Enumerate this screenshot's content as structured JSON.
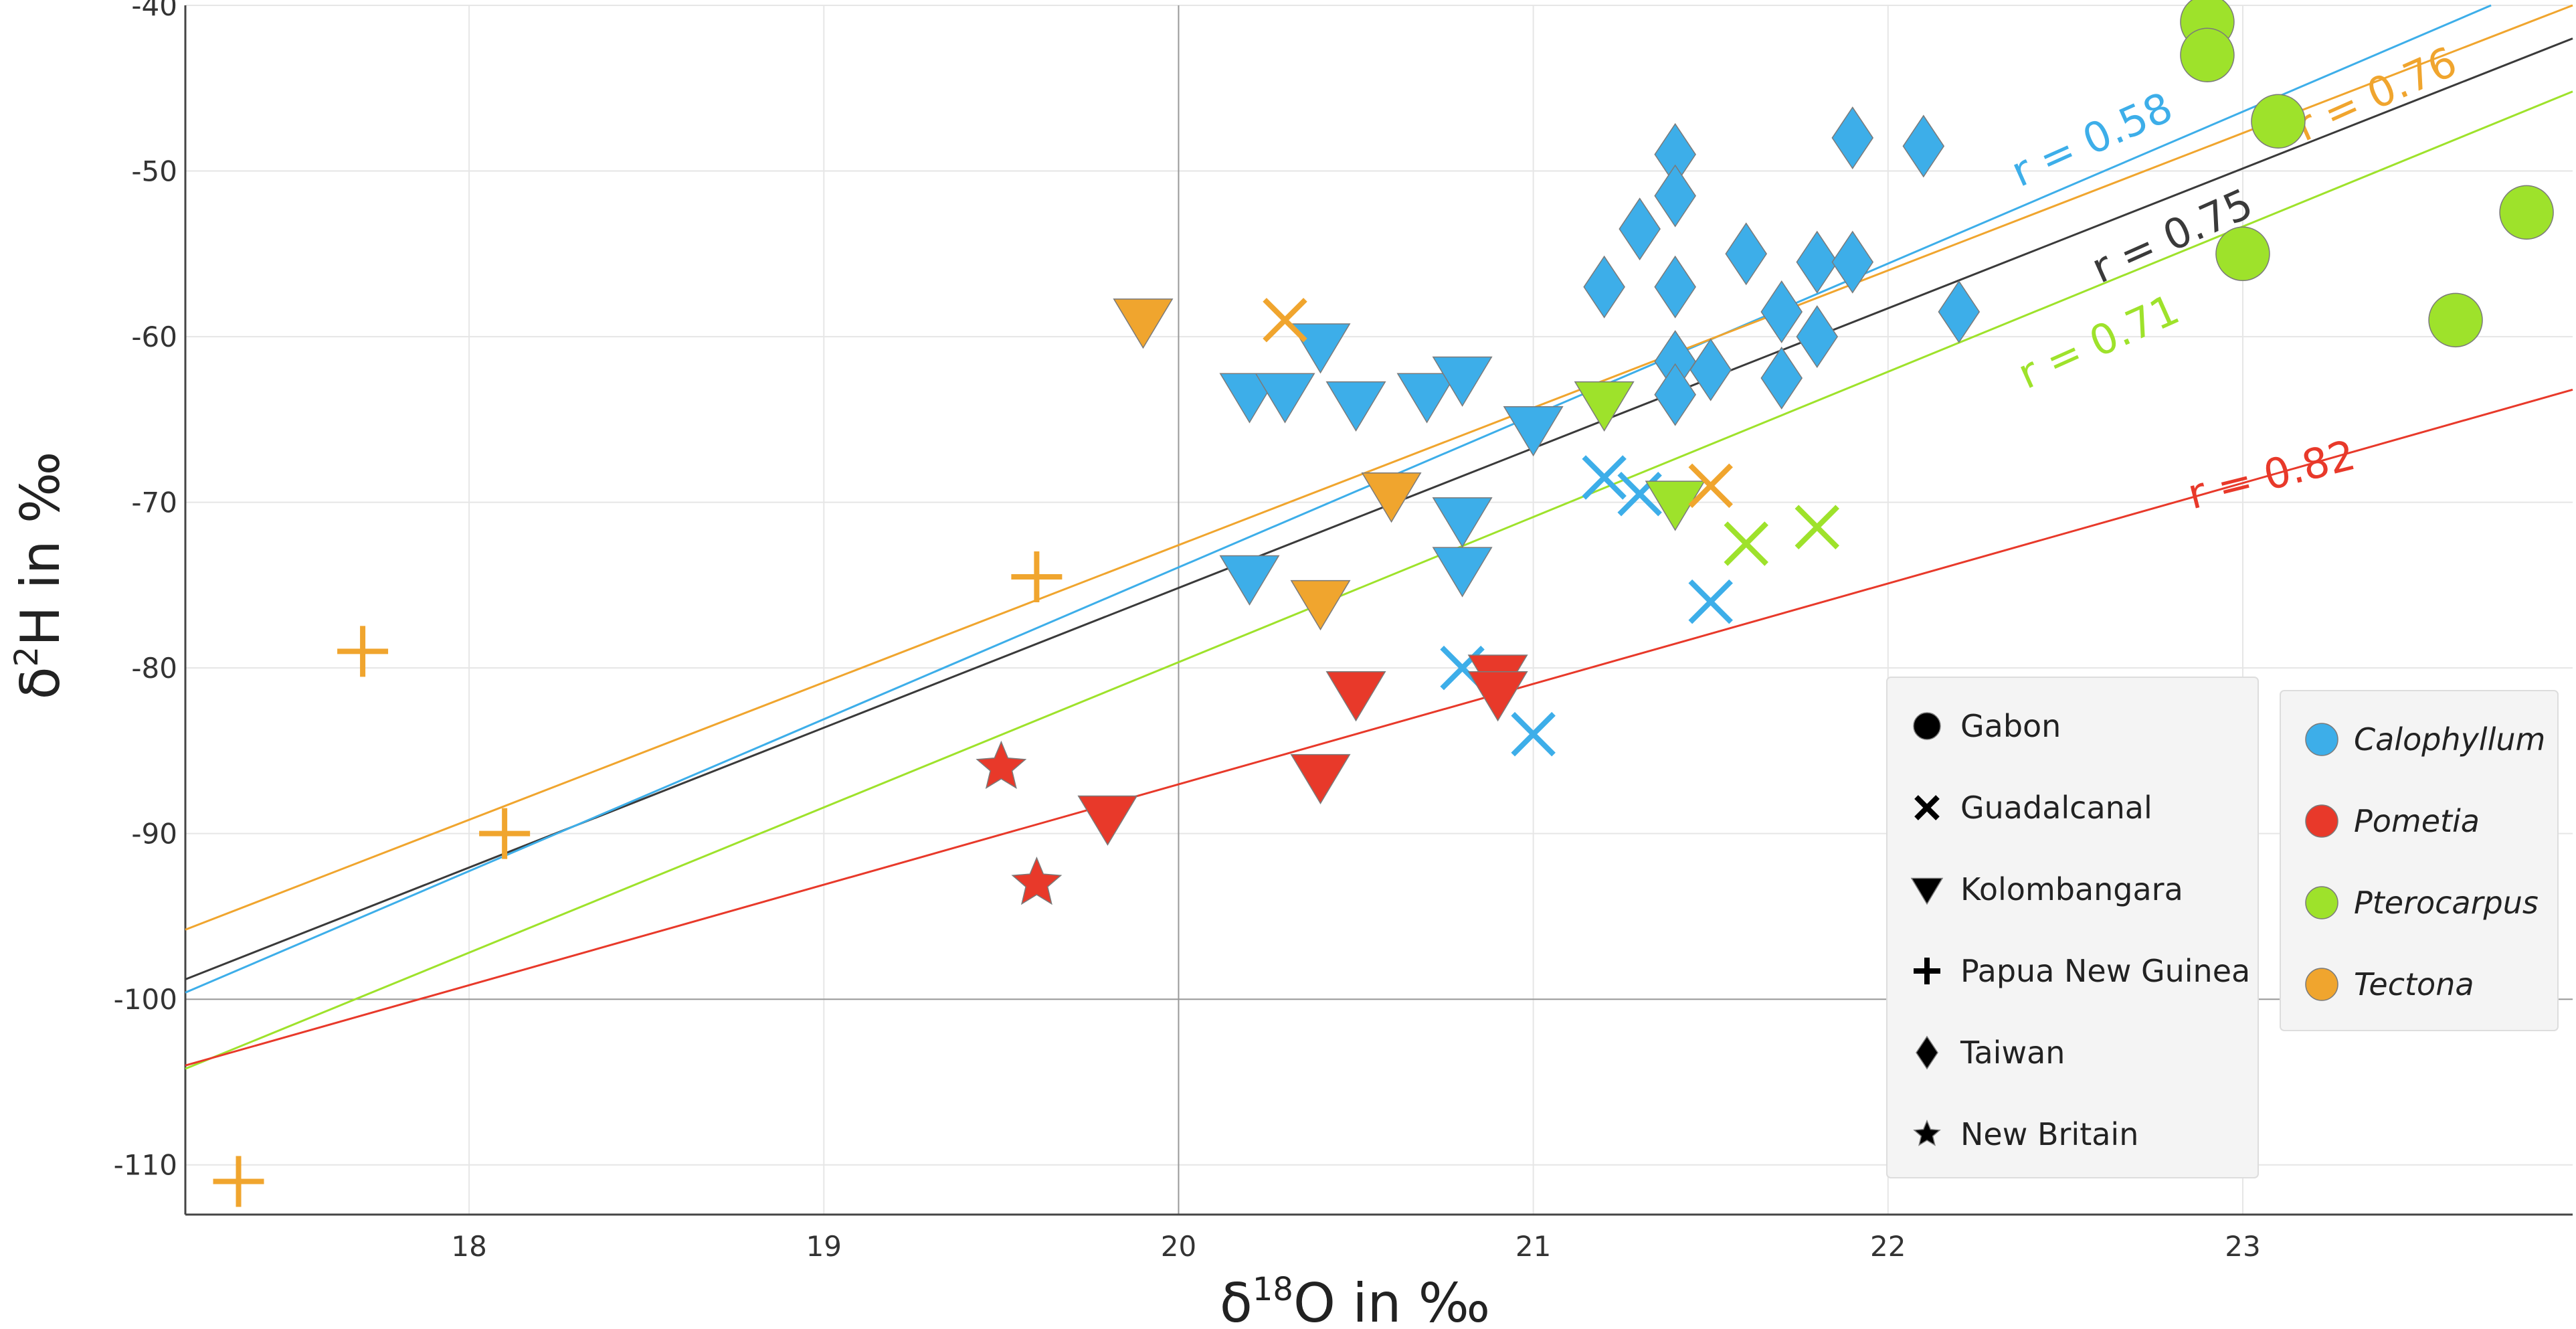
{
  "chart_data": {
    "type": "scatter",
    "xlabel_base": "δ",
    "xlabel_sup": "18",
    "xlabel_rest": "O in ‰",
    "ylabel_base": "δ",
    "ylabel_sup": "2",
    "ylabel_rest": "H in ‰",
    "xlim": [
      17.2,
      23.93
    ],
    "ylim": [
      -113,
      -40
    ],
    "x_ticks": [
      18,
      19,
      20,
      21,
      22,
      23
    ],
    "y_ticks": [
      -40,
      -50,
      -60,
      -70,
      -80,
      -90,
      -100,
      -110
    ],
    "x_tick_labels": [
      "18",
      "19",
      "20",
      "21",
      "22",
      "23"
    ],
    "y_tick_labels": [
      "-40",
      "-50",
      "-60",
      "-70",
      "-80",
      "-90",
      "-100",
      "-110"
    ],
    "zero_reference": {
      "x": 20,
      "y": -100
    },
    "colors": {
      "Calophyllum": "#3daee9",
      "Pometia": "#e8392a",
      "Pterocarpus": "#9ee22b",
      "Tectona": "#f0a52e",
      "overall": "#3a3a3a"
    },
    "regression_lines": [
      {
        "name": "overall",
        "label": "r = 0.75",
        "x": [
          17.2,
          23.93
        ],
        "y": [
          -98.8,
          -42.0
        ]
      },
      {
        "name": "Calophyllum",
        "label": "r = 0.58",
        "x": [
          17.2,
          23.7
        ],
        "y": [
          -99.6,
          -40.0
        ]
      },
      {
        "name": "Tectona",
        "label": "r = 0.76",
        "x": [
          17.2,
          23.93
        ],
        "y": [
          -95.8,
          -40.0
        ]
      },
      {
        "name": "Pterocarpus",
        "label": "r = 0.71",
        "x": [
          17.2,
          23.93
        ],
        "y": [
          -104.2,
          -45.2
        ]
      },
      {
        "name": "Pometia",
        "label": "r = 0.82",
        "x": [
          17.2,
          23.93
        ],
        "y": [
          -104.0,
          -63.2
        ]
      }
    ],
    "series": [
      {
        "species": "Calophyllum",
        "region": "Kolombangara",
        "marker": "triangle-down",
        "x": [
          20.2,
          20.3,
          20.4,
          20.5,
          20.7,
          20.8,
          21.0,
          20.2,
          20.8,
          20.8
        ],
        "y": [
          -63.5,
          -63.5,
          -60.5,
          -64.0,
          -63.5,
          -62.5,
          -65.5,
          -74.5,
          -71.0,
          -74.0
        ]
      },
      {
        "species": "Calophyllum",
        "region": "Taiwan",
        "marker": "diamond",
        "x": [
          21.4,
          21.4,
          21.9,
          22.1,
          21.3,
          21.6,
          21.2,
          21.4,
          21.8,
          21.9,
          21.7,
          21.8,
          22.2,
          21.4,
          21.5,
          21.7,
          21.4
        ],
        "y": [
          -49.0,
          -51.5,
          -48.0,
          -48.5,
          -53.5,
          -55.0,
          -57.0,
          -57.0,
          -55.5,
          -55.5,
          -58.5,
          -60.0,
          -58.5,
          -61.5,
          -62.0,
          -62.5,
          -63.5
        ]
      },
      {
        "species": "Calophyllum",
        "region": "Guadalcanal",
        "marker": "x",
        "x": [
          21.2,
          21.3,
          20.8,
          21.0,
          21.5
        ],
        "y": [
          -68.5,
          -69.5,
          -80.0,
          -84.0,
          -76.0
        ]
      },
      {
        "species": "Pometia",
        "region": "Kolombangara",
        "marker": "triangle-down",
        "x": [
          20.5,
          20.9,
          20.9,
          20.4,
          19.8
        ],
        "y": [
          -81.5,
          -80.5,
          -81.5,
          -86.5,
          -89.0
        ]
      },
      {
        "species": "Pometia",
        "region": "New Britain",
        "marker": "star",
        "x": [
          19.5,
          19.6
        ],
        "y": [
          -86.0,
          -93.0
        ]
      },
      {
        "species": "Pterocarpus",
        "region": "Gabon",
        "marker": "circle",
        "x": [
          22.9,
          22.9,
          23.1,
          23.0,
          23.6,
          23.8
        ],
        "y": [
          -41.0,
          -43.0,
          -47.0,
          -55.0,
          -59.0,
          -52.5
        ]
      },
      {
        "species": "Pterocarpus",
        "region": "Kolombangara",
        "marker": "triangle-down",
        "x": [
          21.2,
          21.4
        ],
        "y": [
          -64.0,
          -70.0
        ]
      },
      {
        "species": "Pterocarpus",
        "region": "Guadalcanal",
        "marker": "x",
        "x": [
          21.6,
          21.8
        ],
        "y": [
          -72.5,
          -71.5
        ]
      },
      {
        "species": "Tectona",
        "region": "Kolombangara",
        "marker": "triangle-down",
        "x": [
          19.9,
          20.6,
          20.4
        ],
        "y": [
          -59.0,
          -69.5,
          -76.0
        ]
      },
      {
        "species": "Tectona",
        "region": "Guadalcanal",
        "marker": "x",
        "x": [
          20.3,
          21.5
        ],
        "y": [
          -59.0,
          -69.0
        ]
      },
      {
        "species": "Tectona",
        "region": "Papua New Guinea",
        "marker": "plus",
        "x": [
          19.6,
          17.7,
          18.1,
          17.35
        ],
        "y": [
          -74.5,
          -79.0,
          -90.0,
          -111.0
        ]
      }
    ],
    "legend_region": [
      {
        "label": "Gabon",
        "marker": "circle"
      },
      {
        "label": "Guadalcanal",
        "marker": "x"
      },
      {
        "label": "Kolombangara",
        "marker": "triangle-down"
      },
      {
        "label": "Papua New Guinea",
        "marker": "plus"
      },
      {
        "label": "Taiwan",
        "marker": "diamond"
      },
      {
        "label": "New Britain",
        "marker": "star"
      }
    ],
    "legend_species": [
      {
        "label": "Calophyllum",
        "color": "#3daee9"
      },
      {
        "label": "Pometia",
        "color": "#e8392a"
      },
      {
        "label": "Pterocarpus",
        "color": "#9ee22b"
      },
      {
        "label": "Tectona",
        "color": "#f0a52e"
      }
    ]
  }
}
